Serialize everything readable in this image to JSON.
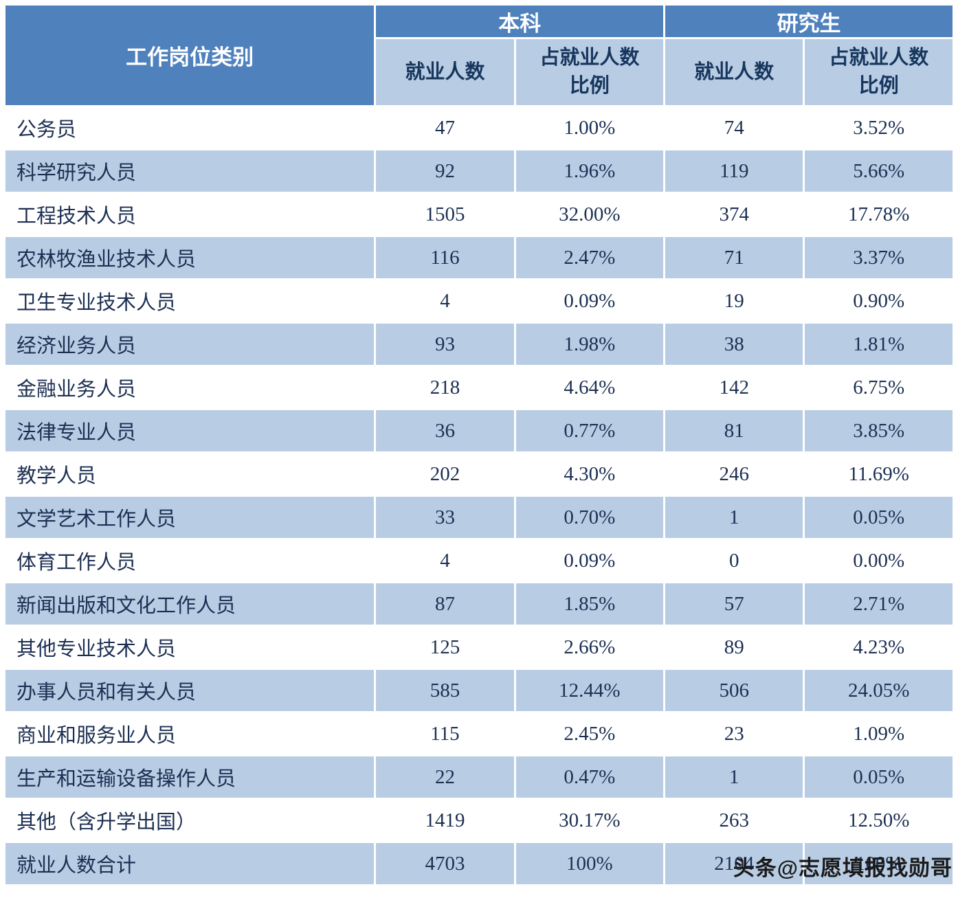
{
  "table": {
    "header": {
      "category": "工作岗位类别",
      "undergraduate": "本科",
      "graduate": "研究生",
      "count_label": "就业人数",
      "percent_label": "占就业人数比例"
    },
    "rows": [
      {
        "category": "公务员",
        "ug_count": "47",
        "ug_pct": "1.00%",
        "gr_count": "74",
        "gr_pct": "3.52%"
      },
      {
        "category": "科学研究人员",
        "ug_count": "92",
        "ug_pct": "1.96%",
        "gr_count": "119",
        "gr_pct": "5.66%"
      },
      {
        "category": "工程技术人员",
        "ug_count": "1505",
        "ug_pct": "32.00%",
        "gr_count": "374",
        "gr_pct": "17.78%"
      },
      {
        "category": "农林牧渔业技术人员",
        "ug_count": "116",
        "ug_pct": "2.47%",
        "gr_count": "71",
        "gr_pct": "3.37%"
      },
      {
        "category": "卫生专业技术人员",
        "ug_count": "4",
        "ug_pct": "0.09%",
        "gr_count": "19",
        "gr_pct": "0.90%"
      },
      {
        "category": "经济业务人员",
        "ug_count": "93",
        "ug_pct": "1.98%",
        "gr_count": "38",
        "gr_pct": "1.81%"
      },
      {
        "category": "金融业务人员",
        "ug_count": "218",
        "ug_pct": "4.64%",
        "gr_count": "142",
        "gr_pct": "6.75%"
      },
      {
        "category": "法律专业人员",
        "ug_count": "36",
        "ug_pct": "0.77%",
        "gr_count": "81",
        "gr_pct": "3.85%"
      },
      {
        "category": "教学人员",
        "ug_count": "202",
        "ug_pct": "4.30%",
        "gr_count": "246",
        "gr_pct": "11.69%"
      },
      {
        "category": "文学艺术工作人员",
        "ug_count": "33",
        "ug_pct": "0.70%",
        "gr_count": "1",
        "gr_pct": "0.05%"
      },
      {
        "category": "体育工作人员",
        "ug_count": "4",
        "ug_pct": "0.09%",
        "gr_count": "0",
        "gr_pct": "0.00%"
      },
      {
        "category": "新闻出版和文化工作人员",
        "ug_count": "87",
        "ug_pct": "1.85%",
        "gr_count": "57",
        "gr_pct": "2.71%"
      },
      {
        "category": "其他专业技术人员",
        "ug_count": "125",
        "ug_pct": "2.66%",
        "gr_count": "89",
        "gr_pct": "4.23%"
      },
      {
        "category": "办事人员和有关人员",
        "ug_count": "585",
        "ug_pct": "12.44%",
        "gr_count": "506",
        "gr_pct": "24.05%"
      },
      {
        "category": "商业和服务业人员",
        "ug_count": "115",
        "ug_pct": "2.45%",
        "gr_count": "23",
        "gr_pct": "1.09%"
      },
      {
        "category": "生产和运输设备操作人员",
        "ug_count": "22",
        "ug_pct": "0.47%",
        "gr_count": "1",
        "gr_pct": "0.05%"
      },
      {
        "category": "其他（含升学出国）",
        "ug_count": "1419",
        "ug_pct": "30.17%",
        "gr_count": "263",
        "gr_pct": "12.50%"
      },
      {
        "category": "就业人数合计",
        "ug_count": "4703",
        "ug_pct": "100%",
        "gr_count": "2104",
        "gr_pct": "100%"
      }
    ]
  },
  "watermark": "头条@志愿填报找勋哥",
  "colors": {
    "header_blue": "#4f81bd",
    "row_alt_blue": "#b8cce4",
    "header_text": "#ffffff",
    "subheader_text": "#17365d",
    "body_text": "#1c2f52"
  }
}
